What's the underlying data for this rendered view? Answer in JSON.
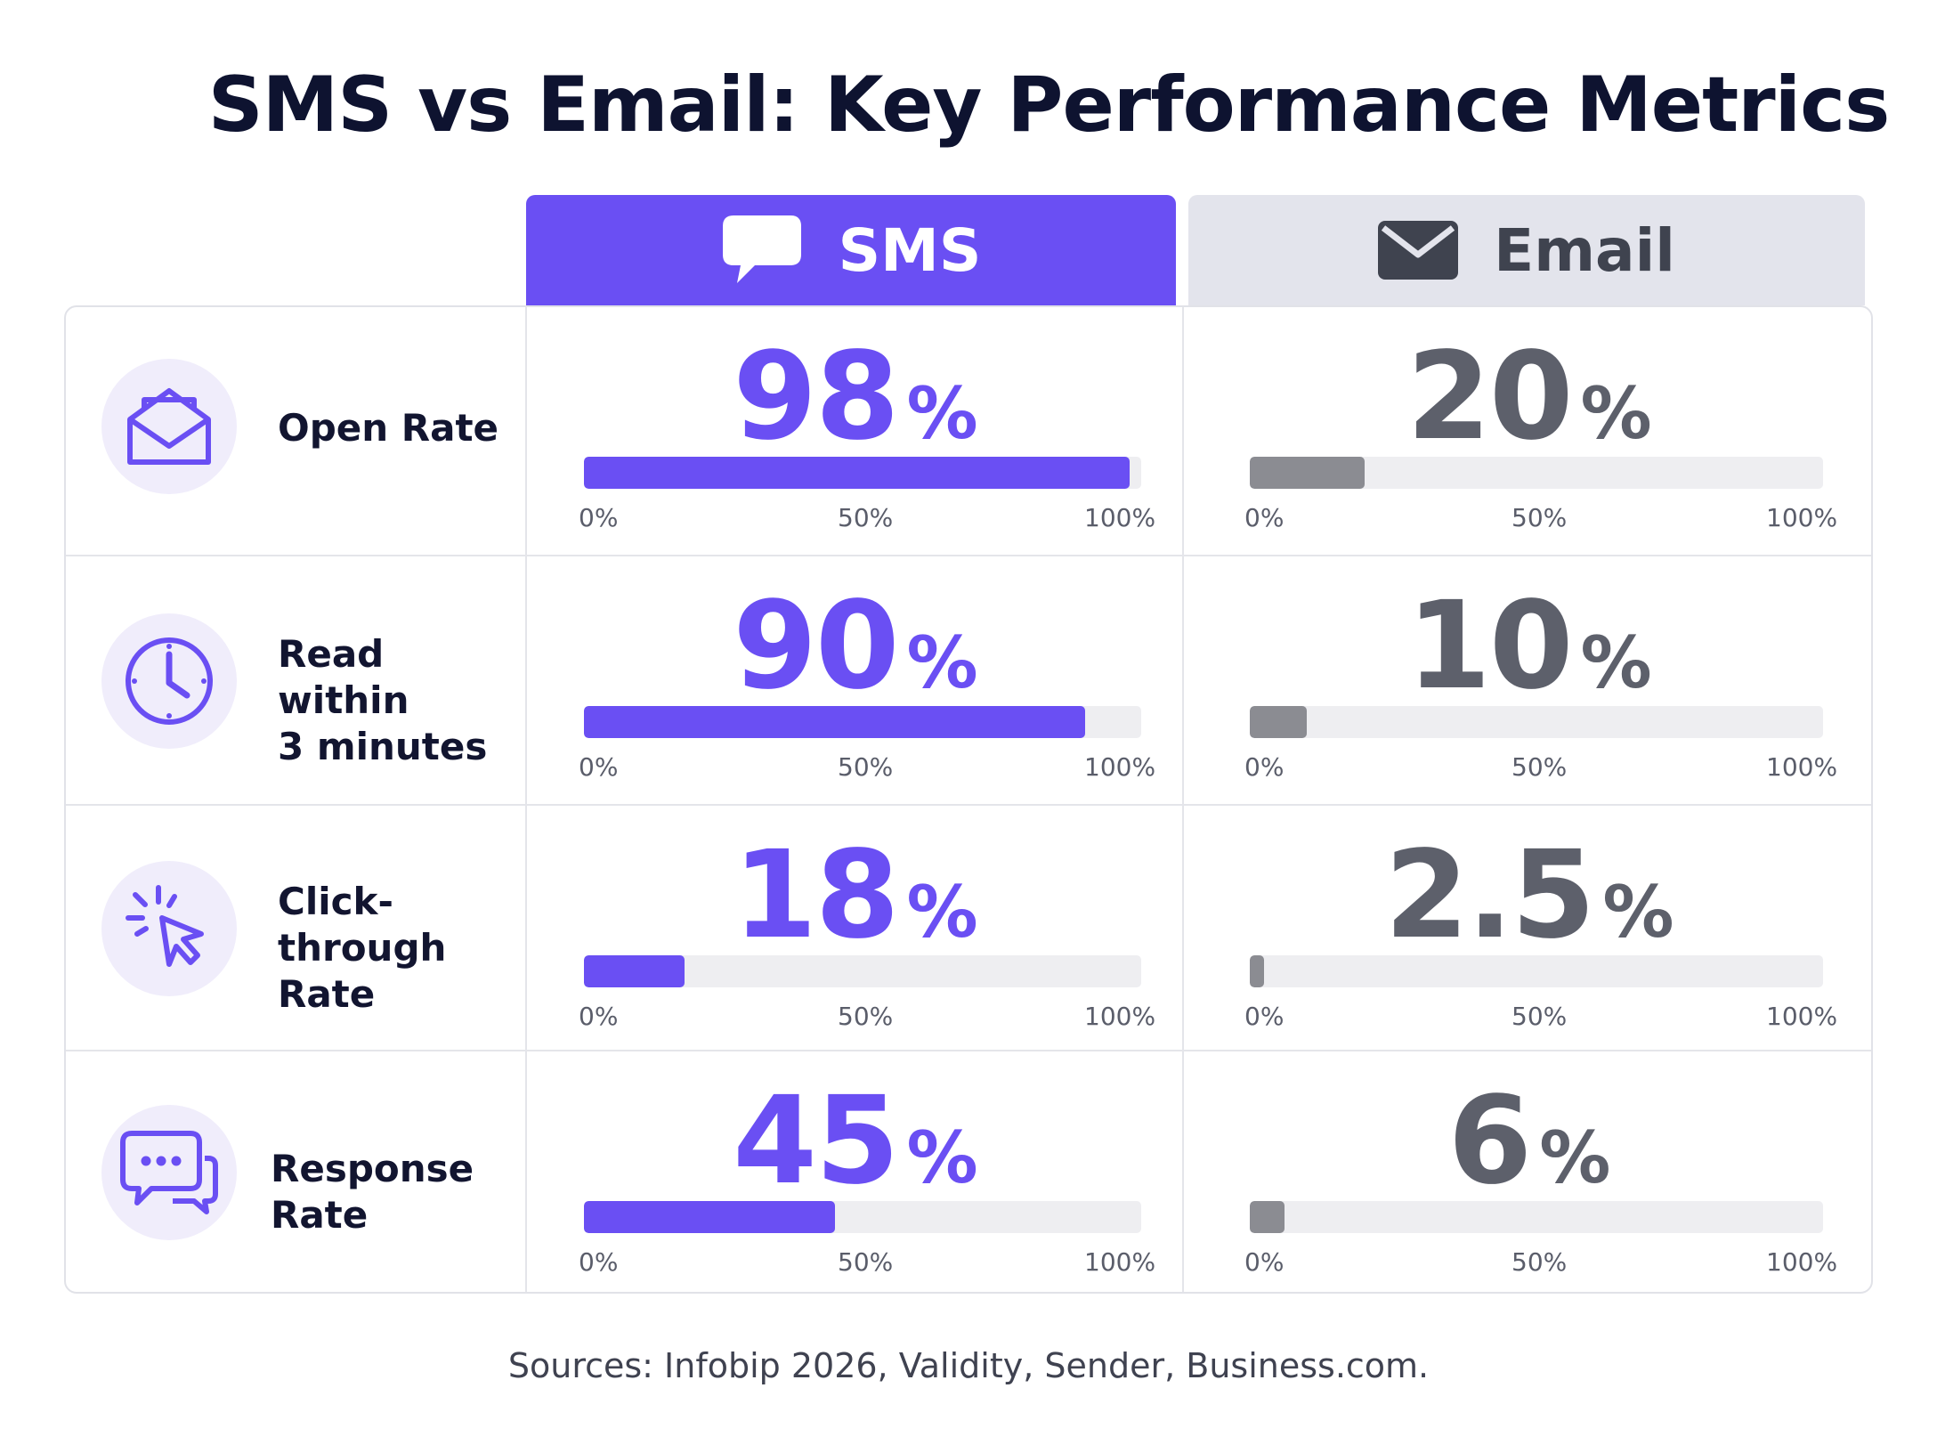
{
  "title": "SMS vs Email: Key Performance Metrics",
  "columns": {
    "sms": {
      "label": "SMS",
      "icon": "chat-bubble-icon",
      "color": "#6a4ff3"
    },
    "email": {
      "label": "Email",
      "icon": "envelope-icon",
      "color": "#5d606b"
    }
  },
  "axis_ticks": [
    "0%",
    "50%",
    "100%"
  ],
  "percent_sign": "%",
  "source": "Sources: Infobip 2026, Validity, Sender, Business.com.",
  "chart_data": {
    "type": "bar",
    "categories": [
      "Open Rate",
      "Read within 3 minutes",
      "Click-through Rate",
      "Response Rate"
    ],
    "series": [
      {
        "name": "SMS",
        "values": [
          98,
          90,
          18,
          45
        ]
      },
      {
        "name": "Email",
        "values": [
          20,
          10,
          2.5,
          6
        ]
      }
    ],
    "ylim": [
      0,
      100
    ],
    "title": "SMS vs Email: Key Performance Metrics"
  },
  "metrics": [
    {
      "label": "Open Rate",
      "icon": "open-envelope-icon",
      "sms": "98",
      "email": "20"
    },
    {
      "label": "Read within\n3 minutes",
      "icon": "clock-icon",
      "sms": "90",
      "email": "10"
    },
    {
      "label": "Click-through\nRate",
      "icon": "cursor-click-icon",
      "sms": "18",
      "email": "2.5"
    },
    {
      "label": "Response Rate",
      "icon": "chat-bubbles-icon",
      "sms": "45",
      "email": "6"
    }
  ]
}
